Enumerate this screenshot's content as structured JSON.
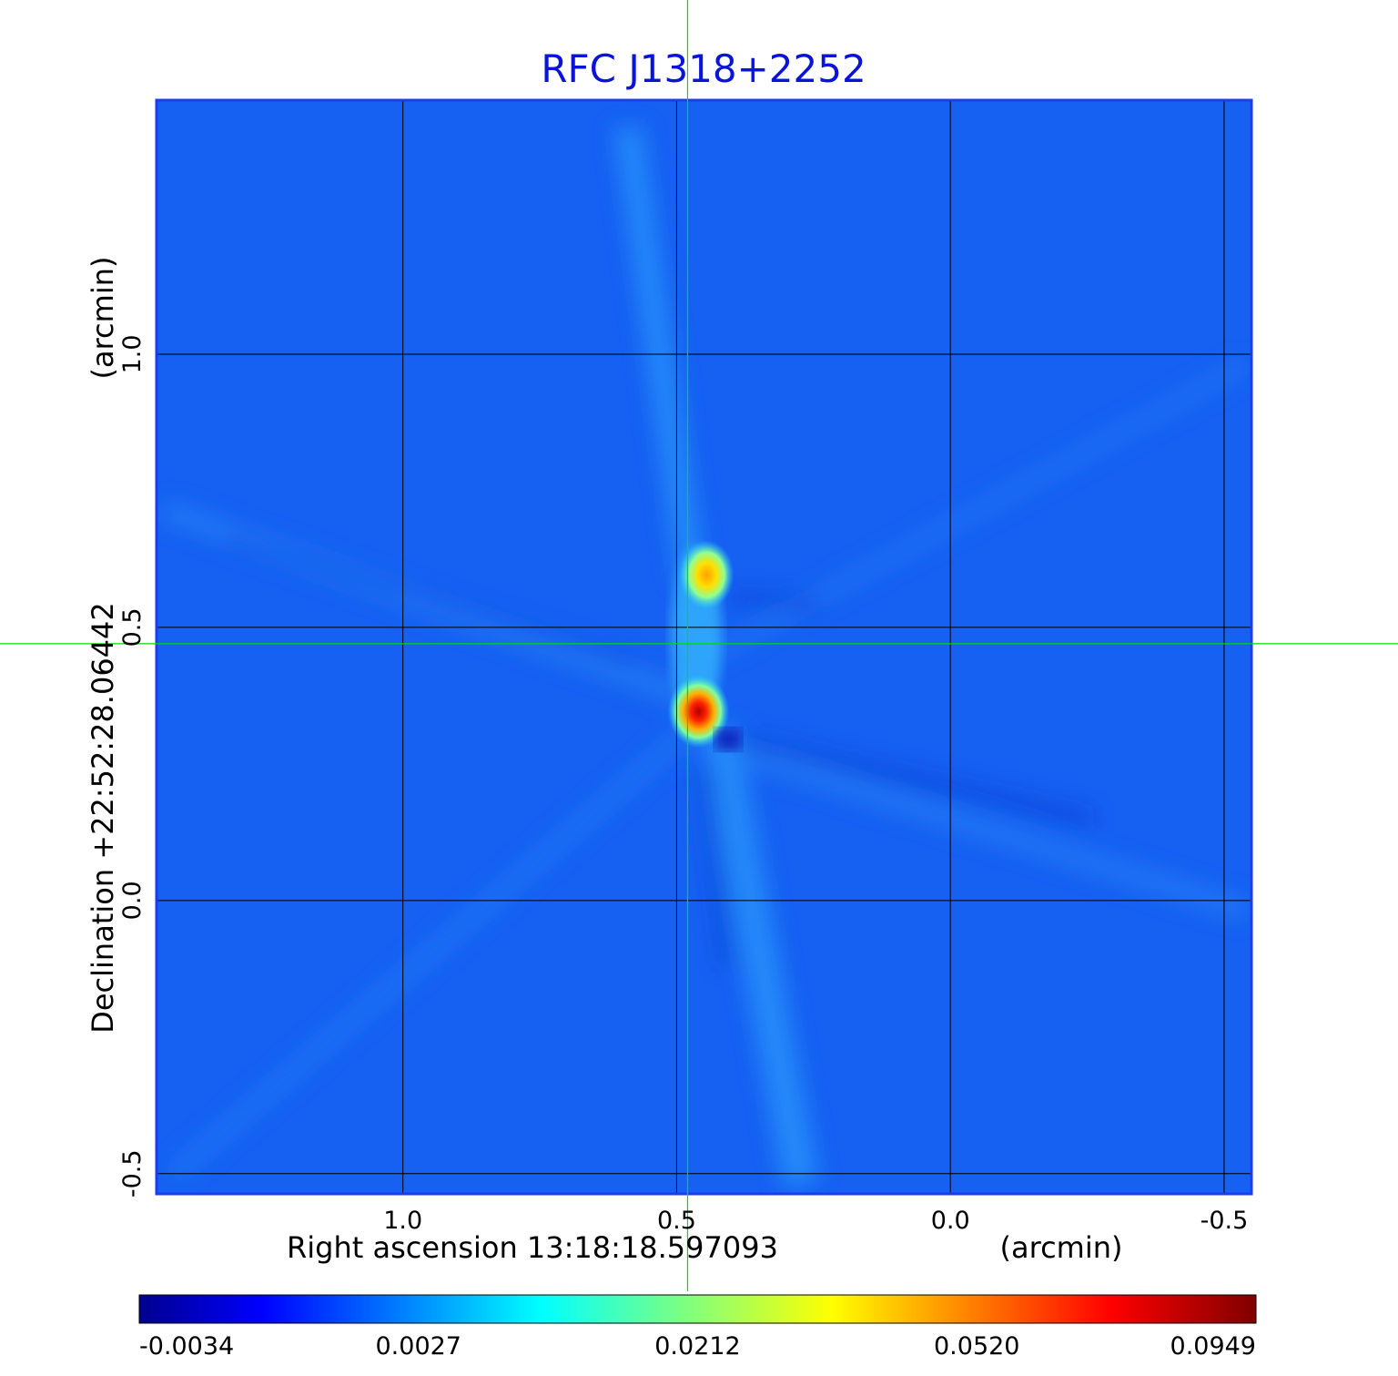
{
  "chart_data": {
    "type": "heatmap",
    "title": "RFC J1318+2252",
    "xlabel": "Right ascension  13:18:18.597093",
    "xunit": "(arcmin)",
    "ylabel": "Declination  +22:52:28.06442",
    "yunit": "(arcmin)",
    "xlim": [
      1.45,
      -0.55
    ],
    "ylim": [
      -0.537,
      1.465
    ],
    "x_ticks": [
      1.0,
      0.5,
      0.0,
      -0.5
    ],
    "x_tick_labels": [
      "1.0",
      "0.5",
      "0.0",
      "-0.5"
    ],
    "y_ticks": [
      -0.5,
      0.0,
      0.5,
      1.0
    ],
    "y_tick_labels": [
      "-0.5",
      "0.0",
      "0.5",
      "1.0"
    ],
    "grid": true,
    "crosshair": {
      "x": 0.48,
      "y": 0.47
    },
    "colormap": "jet",
    "colorbar": {
      "ticks": [
        -0.0034,
        0.0027,
        0.0212,
        0.052,
        0.0949
      ],
      "tick_labels": [
        "-0.0034",
        "0.0027",
        "0.0212",
        "0.0520",
        "0.0949"
      ]
    },
    "components": [
      {
        "x": 0.46,
        "y": 0.346,
        "peak": 0.0949
      },
      {
        "x": 0.445,
        "y": 0.596,
        "peak": 0.045
      }
    ]
  },
  "colors": {
    "title": "#0a14d6",
    "background_map": "#1661f2",
    "crosshair": "#00dd00",
    "grid": "#000000"
  }
}
